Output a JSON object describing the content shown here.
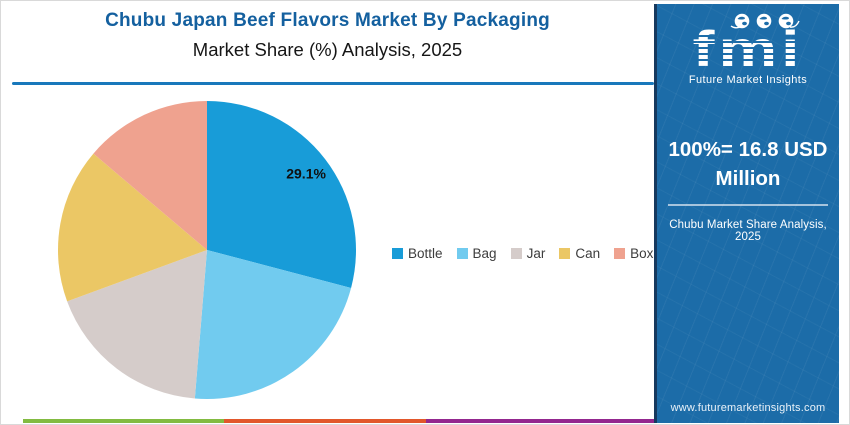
{
  "header": {
    "title": "Chubu Japan Beef Flavors Market By Packaging",
    "subtitle": "Market Share (%) Analysis, 2025",
    "title_color": "#14609F",
    "underline_color": "#1878BB"
  },
  "chart_data": {
    "type": "pie",
    "title": "Chubu Japan Beef Flavors Market By Packaging",
    "subtitle": "Market Share (%) Analysis, 2025",
    "start_angle_deg": 0,
    "direction": "clockwise",
    "legend_position": "right-middle",
    "slices": [
      {
        "name": "Bottle",
        "value": 29.1,
        "color": "#189CD8",
        "data_label": "29.1%"
      },
      {
        "name": "Bag",
        "value": 22.2,
        "color": "#71CBEF"
      },
      {
        "name": "Jar",
        "value": 18.1,
        "color": "#D5CCCA"
      },
      {
        "name": "Can",
        "value": 16.8,
        "color": "#EBC765"
      },
      {
        "name": "Box",
        "value": 13.8,
        "color": "#EFA28F"
      }
    ]
  },
  "sidebar": {
    "bg_color": "#1C6CA8",
    "logo_text": "fmi",
    "logo_tagline": "Future Market Insights",
    "headline": "100%= 16.8 USD Million",
    "note": "Chubu Market Share Analysis, 2025",
    "website": "www.futuremarketinsights.com"
  },
  "footer": {
    "stripe_colors": [
      "#82BB41",
      "#E2572B",
      "#93278F"
    ]
  }
}
